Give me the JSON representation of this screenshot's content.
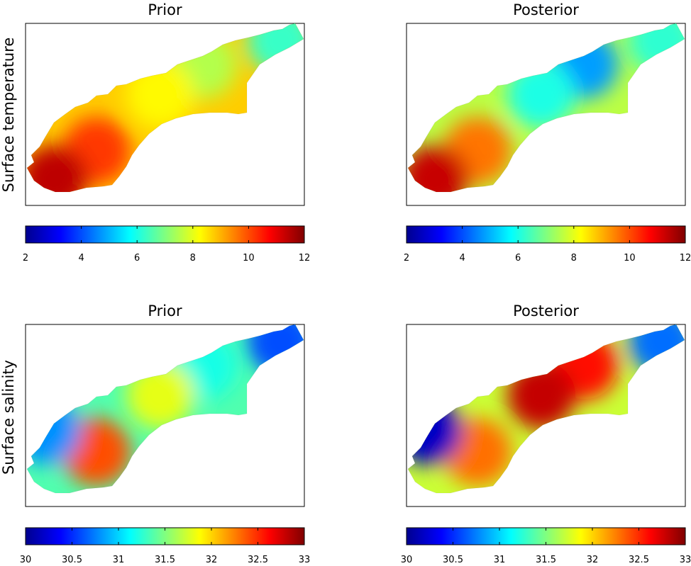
{
  "row_labels": {
    "temperature": "Surface temperature",
    "salinity": "Surface salinity"
  },
  "chart_data": [
    {
      "type": "heatmap",
      "title": "Prior",
      "variable": "temperature",
      "colormap": "jet",
      "clim": [
        2,
        12
      ],
      "colorbar_ticks": [
        "2",
        "4",
        "6",
        "8",
        "10",
        "12"
      ],
      "regions": [
        {
          "zone": "northeast tip",
          "value": 6.3
        },
        {
          "zone": "northern bays",
          "value": 7.5
        },
        {
          "zone": "central",
          "value": 8.3
        },
        {
          "zone": "southwest",
          "value": 10.2
        },
        {
          "zone": "southwest estuary",
          "value": 11.4
        }
      ]
    },
    {
      "type": "heatmap",
      "title": "Posterior",
      "variable": "temperature",
      "colormap": "jet",
      "clim": [
        2,
        12
      ],
      "colorbar_ticks": [
        "2",
        "4",
        "6",
        "8",
        "10",
        "12"
      ],
      "regions": [
        {
          "zone": "northeast tip",
          "value": 6.2
        },
        {
          "zone": "northern bays",
          "value": 4.8
        },
        {
          "zone": "central",
          "value": 6.0
        },
        {
          "zone": "southwest",
          "value": 9.6
        },
        {
          "zone": "southwest estuary",
          "value": 11.3
        }
      ]
    },
    {
      "type": "heatmap",
      "title": "Prior",
      "variable": "salinity",
      "colormap": "jet",
      "clim": [
        30,
        33
      ],
      "colorbar_ticks": [
        "30",
        "30.5",
        "31",
        "31.5",
        "32",
        "32.5",
        "33"
      ],
      "regions": [
        {
          "zone": "northeast tip",
          "value": 30.6
        },
        {
          "zone": "northern bays",
          "value": 31.2
        },
        {
          "zone": "central",
          "value": 31.8
        },
        {
          "zone": "southwest",
          "value": 32.4
        },
        {
          "zone": "west coast",
          "value": 30.8
        }
      ]
    },
    {
      "type": "heatmap",
      "title": "Posterior",
      "variable": "salinity",
      "colormap": "jet",
      "clim": [
        30,
        33
      ],
      "colorbar_ticks": [
        "30",
        "30.5",
        "31",
        "31.5",
        "32",
        "32.5",
        "33"
      ],
      "regions": [
        {
          "zone": "northeast tip",
          "value": 30.7
        },
        {
          "zone": "northern bays",
          "value": 32.6
        },
        {
          "zone": "central",
          "value": 32.8
        },
        {
          "zone": "southwest",
          "value": 32.3
        },
        {
          "zone": "west coast",
          "value": 30.2
        }
      ]
    }
  ]
}
